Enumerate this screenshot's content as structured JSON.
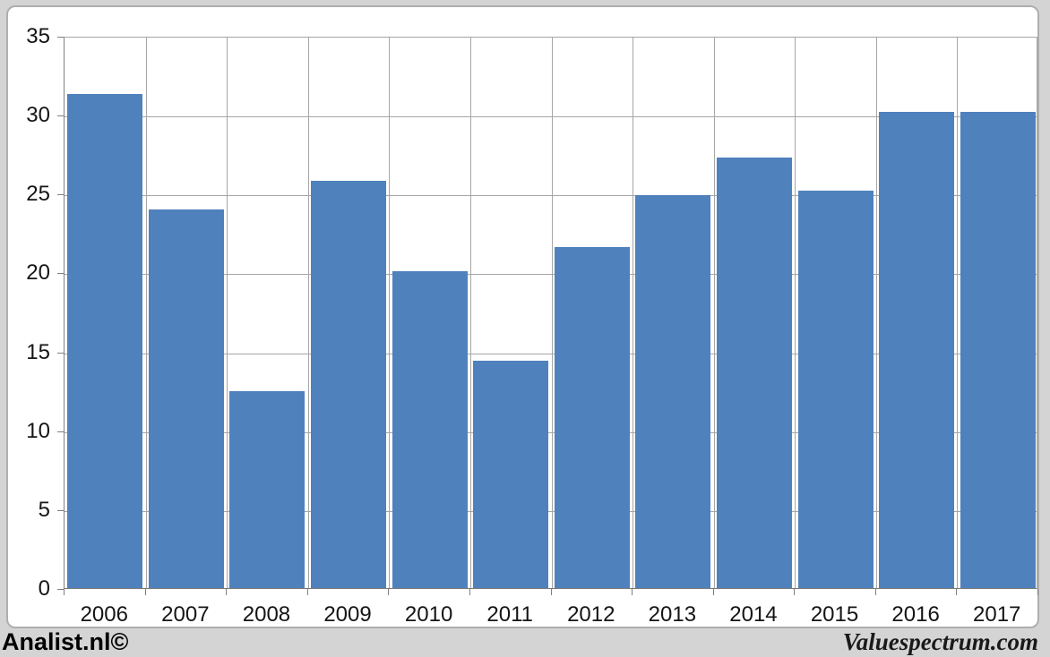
{
  "footer": {
    "left": "Analist.nl©",
    "right": "Valuespectrum.com"
  },
  "chart_data": {
    "type": "bar",
    "categories": [
      "2006",
      "2007",
      "2008",
      "2009",
      "2010",
      "2011",
      "2012",
      "2013",
      "2014",
      "2015",
      "2016",
      "2017"
    ],
    "values": [
      31.3,
      24.0,
      12.5,
      25.8,
      20.1,
      14.4,
      21.6,
      24.9,
      27.3,
      25.2,
      30.2,
      30.2
    ],
    "title": "",
    "xlabel": "",
    "ylabel": "",
    "ylim": [
      0,
      35
    ],
    "yticks": [
      0,
      5,
      10,
      15,
      20,
      25,
      30,
      35
    ],
    "grid": true,
    "legend": "none",
    "bar_color": "#4f81bd",
    "gridline_color": "#a6a6a6",
    "axis_color": "#808080",
    "plot_background": "#ffffff",
    "page_background": "#d4d4d4"
  }
}
